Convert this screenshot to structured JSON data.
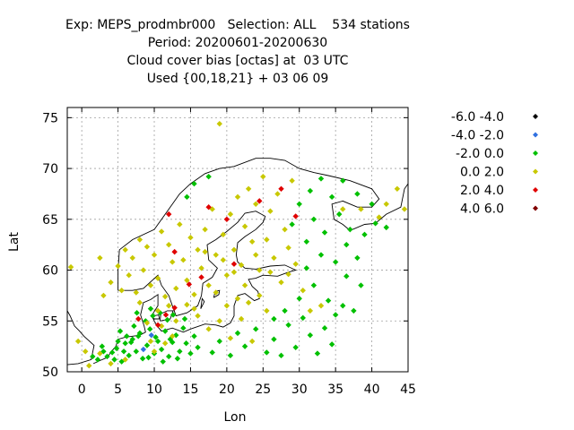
{
  "title_lines": [
    "Exp: MEPS_prodmbr000   Selection: ALL    534 stations",
    "Period: 20200601-20200630",
    "Cloud cover bias [octas] at  03 UTC",
    "Used {00,18,21} + 03 06 09"
  ],
  "chart_data": {
    "type": "scatter",
    "xlabel": "Lon",
    "ylabel": "Lat",
    "xlim": [
      -2,
      45
    ],
    "ylim": [
      50,
      76
    ],
    "xticks": [
      0,
      5,
      10,
      15,
      20,
      25,
      30,
      35,
      40,
      45
    ],
    "yticks": [
      50,
      55,
      60,
      65,
      70,
      75
    ],
    "grid": true,
    "legend_position": "right",
    "series": [
      {
        "name": "-6.0 -4.0",
        "color": "#000000",
        "points": []
      },
      {
        "name": "-4.0 -2.0",
        "color": "#3070e0",
        "points": [
          [
            8.5,
            52.2
          ],
          [
            9.6,
            53.6
          ]
        ]
      },
      {
        "name": "-2.0 0.0",
        "color": "#00c000",
        "points": [
          [
            2.2,
            51.2
          ],
          [
            3.5,
            51.5
          ],
          [
            4.2,
            51.9
          ],
          [
            4.8,
            52.3
          ],
          [
            5.5,
            51.0
          ],
          [
            6.0,
            52.8
          ],
          [
            6.5,
            51.6
          ],
          [
            7.0,
            53.2
          ],
          [
            7.5,
            52.0
          ],
          [
            8.0,
            53.8
          ],
          [
            8.4,
            51.3
          ],
          [
            9.0,
            52.6
          ],
          [
            9.4,
            54.2
          ],
          [
            10.0,
            51.8
          ],
          [
            10.5,
            53.0
          ],
          [
            11.0,
            52.2
          ],
          [
            11.5,
            54.0
          ],
          [
            12.0,
            51.5
          ],
          [
            12.5,
            52.9
          ],
          [
            13.0,
            53.6
          ],
          [
            13.5,
            52.0
          ],
          [
            14.0,
            54.3
          ],
          [
            6.2,
            53.5
          ],
          [
            7.2,
            54.5
          ],
          [
            8.8,
            55.0
          ],
          [
            9.8,
            55.5
          ],
          [
            10.8,
            55.8
          ],
          [
            11.8,
            55.1
          ],
          [
            12.6,
            55.6
          ],
          [
            14.2,
            55.2
          ],
          [
            5.0,
            53.0
          ],
          [
            3.0,
            52.0
          ],
          [
            1.5,
            51.5
          ],
          [
            2.8,
            52.5
          ],
          [
            4.5,
            51.2
          ],
          [
            5.8,
            52.0
          ],
          [
            6.8,
            52.9
          ],
          [
            7.8,
            53.5
          ],
          [
            9.2,
            51.4
          ],
          [
            10.2,
            53.4
          ],
          [
            11.2,
            51.0
          ],
          [
            12.2,
            53.2
          ],
          [
            13.2,
            51.3
          ],
          [
            14.4,
            52.8
          ],
          [
            15.0,
            51.8
          ],
          [
            15.5,
            53.5
          ],
          [
            16.0,
            52.4
          ],
          [
            5.3,
            54.0
          ],
          [
            7.6,
            55.8
          ],
          [
            9.5,
            56.2
          ],
          [
            18.0,
            51.9
          ],
          [
            19.0,
            53.0
          ],
          [
            20.5,
            51.6
          ],
          [
            21.5,
            53.8
          ],
          [
            22.5,
            52.5
          ],
          [
            24.0,
            54.2
          ],
          [
            25.5,
            51.9
          ],
          [
            26.5,
            53.2
          ],
          [
            27.5,
            51.6
          ],
          [
            28.5,
            54.6
          ],
          [
            29.5,
            52.4
          ],
          [
            30.5,
            55.3
          ],
          [
            31.5,
            53.6
          ],
          [
            32.5,
            51.8
          ],
          [
            33.5,
            54.3
          ],
          [
            34.5,
            52.7
          ],
          [
            35.0,
            55.6
          ],
          [
            30.0,
            57.2
          ],
          [
            32.0,
            58.5
          ],
          [
            34.0,
            57.0
          ],
          [
            31.0,
            60.2
          ],
          [
            33.0,
            61.5
          ],
          [
            35.0,
            60.8
          ],
          [
            36.5,
            62.5
          ],
          [
            38.0,
            61.2
          ],
          [
            39.0,
            63.5
          ],
          [
            40.5,
            64.6
          ],
          [
            42.0,
            64.2
          ],
          [
            37.0,
            64.0
          ],
          [
            35.5,
            65.5
          ],
          [
            33.5,
            63.7
          ],
          [
            34.5,
            67.2
          ],
          [
            36.0,
            68.8
          ],
          [
            33.0,
            69.0
          ],
          [
            31.5,
            67.8
          ],
          [
            30.0,
            66.5
          ],
          [
            29.0,
            64.5
          ],
          [
            31.0,
            62.8
          ],
          [
            36.5,
            59.4
          ],
          [
            38.5,
            58.5
          ],
          [
            40.0,
            66.5
          ],
          [
            38.0,
            67.5
          ],
          [
            32.0,
            65.0
          ],
          [
            37.5,
            56.0
          ],
          [
            36.0,
            56.5
          ],
          [
            28.0,
            56.0
          ],
          [
            26.5,
            55.2
          ],
          [
            14.5,
            67.2
          ],
          [
            15.5,
            68.5
          ],
          [
            17.5,
            69.2
          ]
        ]
      },
      {
        "name": "0.0 2.0",
        "color": "#c8c800",
        "points": [
          [
            -1.5,
            60.3
          ],
          [
            -0.5,
            53.0
          ],
          [
            0.5,
            52.0
          ],
          [
            2.5,
            61.2
          ],
          [
            3.0,
            57.5
          ],
          [
            4.0,
            58.8
          ],
          [
            5.0,
            60.4
          ],
          [
            5.5,
            58.0
          ],
          [
            6.0,
            62.0
          ],
          [
            6.5,
            59.5
          ],
          [
            7.0,
            61.2
          ],
          [
            7.5,
            57.8
          ],
          [
            8.0,
            63.0
          ],
          [
            8.5,
            60.0
          ],
          [
            9.0,
            62.3
          ],
          [
            9.5,
            58.5
          ],
          [
            10.0,
            61.5
          ],
          [
            10.5,
            59.2
          ],
          [
            11.0,
            63.8
          ],
          [
            11.5,
            57.4
          ],
          [
            12.0,
            62.5
          ],
          [
            12.5,
            60.8
          ],
          [
            13.0,
            58.2
          ],
          [
            13.5,
            64.5
          ],
          [
            14.0,
            61.0
          ],
          [
            14.5,
            59.0
          ],
          [
            15.0,
            63.2
          ],
          [
            15.5,
            57.6
          ],
          [
            16.0,
            62.0
          ],
          [
            16.5,
            60.2
          ],
          [
            17.0,
            64.0
          ],
          [
            17.5,
            58.5
          ],
          [
            18.0,
            66.0
          ],
          [
            18.5,
            61.5
          ],
          [
            19.0,
            74.4
          ],
          [
            19.5,
            63.5
          ],
          [
            20.0,
            59.5
          ],
          [
            20.5,
            65.5
          ],
          [
            21.0,
            62.0
          ],
          [
            21.5,
            67.2
          ],
          [
            22.0,
            60.5
          ],
          [
            22.5,
            64.3
          ],
          [
            23.0,
            68.0
          ],
          [
            23.5,
            62.8
          ],
          [
            24.0,
            66.5
          ],
          [
            24.5,
            60.0
          ],
          [
            25.0,
            69.2
          ],
          [
            25.5,
            63.0
          ],
          [
            26.0,
            65.8
          ],
          [
            26.5,
            61.2
          ],
          [
            27.0,
            67.5
          ],
          [
            27.5,
            58.8
          ],
          [
            28.0,
            64.0
          ],
          [
            28.5,
            62.2
          ],
          [
            29.0,
            68.8
          ],
          [
            29.5,
            60.6
          ],
          [
            18.5,
            57.8
          ],
          [
            20.0,
            56.5
          ],
          [
            21.5,
            57.2
          ],
          [
            23.0,
            56.8
          ],
          [
            24.5,
            57.5
          ],
          [
            25.5,
            56.0
          ],
          [
            22.0,
            55.2
          ],
          [
            19.0,
            55.0
          ],
          [
            17.5,
            54.2
          ],
          [
            16.0,
            55.5
          ],
          [
            20.5,
            53.3
          ],
          [
            23.5,
            53.0
          ],
          [
            12.0,
            56.5
          ],
          [
            10.5,
            56.0
          ],
          [
            9.0,
            54.8
          ],
          [
            8.0,
            56.8
          ],
          [
            11.0,
            54.5
          ],
          [
            13.0,
            55.0
          ],
          [
            14.5,
            56.6
          ],
          [
            15.5,
            56.2
          ],
          [
            10.0,
            52.0
          ],
          [
            12.5,
            53.5
          ],
          [
            11.5,
            52.8
          ],
          [
            9.5,
            53.0
          ],
          [
            2.5,
            51.8
          ],
          [
            4.0,
            50.8
          ],
          [
            1.0,
            50.6
          ],
          [
            6.0,
            51.2
          ],
          [
            43.5,
            68.0
          ],
          [
            44.5,
            66.0
          ],
          [
            42.0,
            66.5
          ],
          [
            41.0,
            65.2
          ],
          [
            38.5,
            66.0
          ],
          [
            36.0,
            66.0
          ],
          [
            30.5,
            58.0
          ],
          [
            31.5,
            56.0
          ],
          [
            33.0,
            56.5
          ],
          [
            28.5,
            59.6
          ],
          [
            26.0,
            59.8
          ],
          [
            24.0,
            61.5
          ],
          [
            22.5,
            58.5
          ],
          [
            21.0,
            59.8
          ],
          [
            19.5,
            61.0
          ],
          [
            17.0,
            61.8
          ]
        ]
      },
      {
        "name": "2.0 4.0",
        "color": "#e00000",
        "points": [
          [
            7.8,
            55.2
          ],
          [
            11.6,
            55.6
          ],
          [
            12.8,
            56.3
          ],
          [
            14.8,
            58.6
          ],
          [
            16.5,
            59.3
          ],
          [
            12.0,
            65.5
          ],
          [
            17.5,
            66.2
          ],
          [
            20.0,
            65.0
          ],
          [
            24.5,
            66.8
          ],
          [
            27.5,
            68.0
          ],
          [
            29.5,
            65.3
          ],
          [
            21.0,
            60.6
          ],
          [
            12.8,
            61.8
          ],
          [
            10.5,
            54.6
          ]
        ]
      },
      {
        "name": "4.0 6.0",
        "color": "#800000",
        "points": []
      }
    ]
  }
}
